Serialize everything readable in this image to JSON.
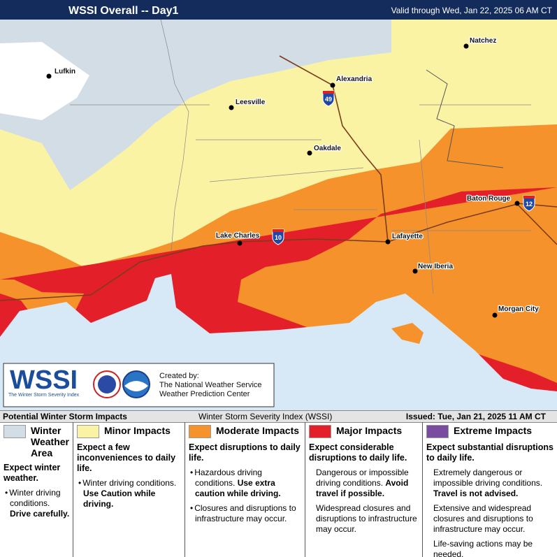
{
  "header": {
    "title": "WSSI Overall -- Day1",
    "valid": "Valid through Wed, Jan 22, 2025 06 AM CT"
  },
  "map": {
    "cities": [
      "Lufkin",
      "Natchez",
      "Alexandria",
      "Leesville",
      "Oakdale",
      "Baton Rouge",
      "Lake Charles",
      "Lafayette",
      "New Iberia",
      "Morgan City"
    ],
    "highways": [
      "49",
      "10",
      "12"
    ]
  },
  "logo": {
    "name": "WSSI",
    "subtitle": "The Winter Storm Severity Index",
    "created_by": "Created by:",
    "org1": "The National Weather Service",
    "org2": "Weather Prediction Center"
  },
  "footer": {
    "left": "Potential Winter Storm Impacts",
    "center": "Winter Storm Severity Index (WSSI)",
    "issued": "Issued: Tue, Jan 21, 2025 11 AM CT"
  },
  "legend": [
    {
      "title": "Winter Weather Area",
      "color": "#d3dde6",
      "headline": "Expect winter weather.",
      "items": [
        {
          "text": "Winter driving conditions.",
          "bold": "Drive carefully."
        }
      ]
    },
    {
      "title": "Minor Impacts",
      "color": "#fbf3a4",
      "headline": "Expect a few inconveniences to daily life.",
      "items": [
        {
          "text": "Winter driving conditions.",
          "bold": "Use Caution while driving."
        }
      ]
    },
    {
      "title": "Moderate Impacts",
      "color": "#f6922c",
      "headline": "Expect disruptions to daily life.",
      "items": [
        {
          "text": "Hazardous driving conditions.",
          "bold": "Use extra caution while driving."
        },
        {
          "text": "Closures and disruptions to infrastructure may occur."
        }
      ]
    },
    {
      "title": "Major Impacts",
      "color": "#e3202a",
      "headline": "Expect considerable disruptions to daily life.",
      "items": [
        {
          "text": "Dangerous or impossible driving conditions.",
          "bold": "Avoid travel if possible."
        },
        {
          "text": "Widespread closures and disruptions to infrastructure may occur."
        }
      ]
    },
    {
      "title": "Extreme Impacts",
      "color": "#7a4ca0",
      "headline": "Expect substantial disruptions to daily life.",
      "items": [
        {
          "text": "Extremely dangerous or impossible driving conditions.",
          "bold": "Travel is not advised."
        },
        {
          "text": "Extensive and widespread closures and disruptions to infrastructure may occur."
        },
        {
          "text": "Life-saving actions may be needed."
        }
      ]
    }
  ]
}
